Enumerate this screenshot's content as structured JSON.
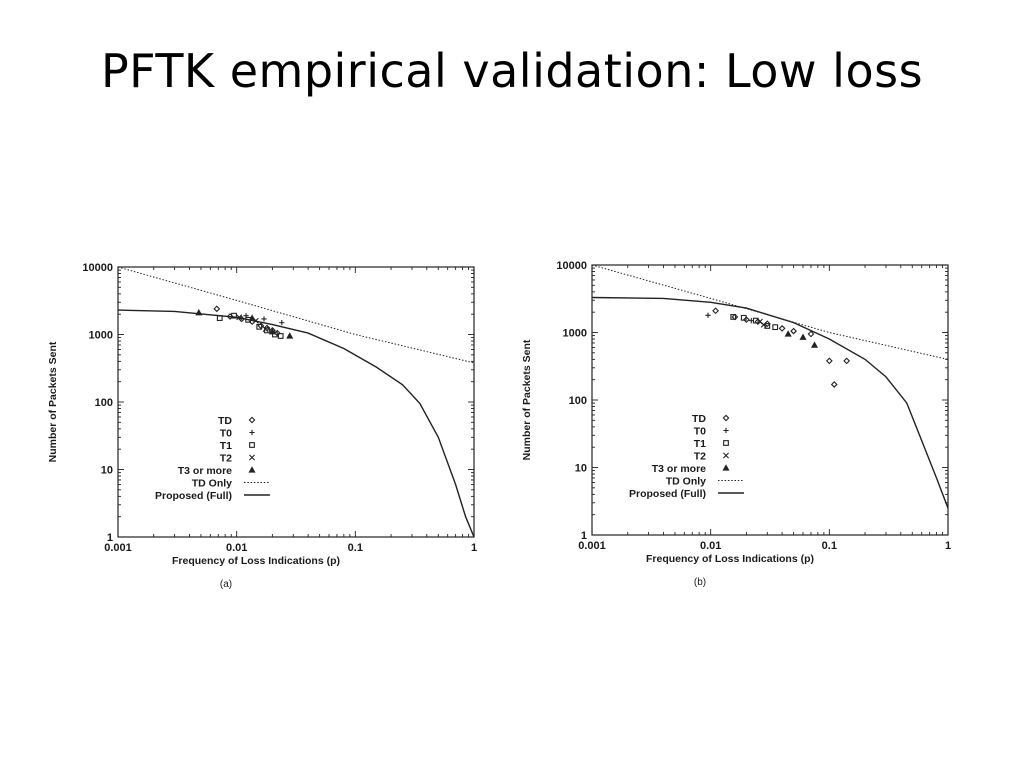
{
  "slide": {
    "title": "PFTK empirical validation: Low loss"
  },
  "chart_data": [
    {
      "type": "scatter",
      "caption": "(a)",
      "xlabel": "Frequency of Loss Indications (p)",
      "ylabel": "Number of Packets Sent",
      "x_scale": "log",
      "y_scale": "log",
      "xlim": [
        0.001,
        1
      ],
      "ylim": [
        1,
        10000
      ],
      "x_ticks": [
        {
          "value": 0.001,
          "label": "0.001"
        },
        {
          "value": 0.01,
          "label": "0.01"
        },
        {
          "value": 0.1,
          "label": "0.1"
        },
        {
          "value": 1,
          "label": "1"
        }
      ],
      "y_ticks": [
        {
          "value": 1,
          "label": "1"
        },
        {
          "value": 10,
          "label": "10"
        },
        {
          "value": 100,
          "label": "100"
        },
        {
          "value": 1000,
          "label": "1000"
        },
        {
          "value": 10000,
          "label": "10000"
        }
      ],
      "legend_position": "center-left",
      "series": [
        {
          "name": "TD",
          "kind": "points",
          "marker": "diamond",
          "points": [
            [
              0.0068,
              2400
            ],
            [
              0.0088,
              1850
            ],
            [
              0.011,
              1700
            ],
            [
              0.0135,
              1550
            ],
            [
              0.016,
              1350
            ],
            [
              0.018,
              1250
            ],
            [
              0.02,
              1150
            ],
            [
              0.022,
              1050
            ]
          ]
        },
        {
          "name": "T0",
          "kind": "points",
          "marker": "plus",
          "points": [
            [
              0.012,
              1900
            ],
            [
              0.017,
              1700
            ],
            [
              0.024,
              1500
            ]
          ]
        },
        {
          "name": "T1",
          "kind": "points",
          "marker": "square",
          "points": [
            [
              0.0072,
              1750
            ],
            [
              0.0095,
              1900
            ],
            [
              0.0125,
              1650
            ],
            [
              0.0155,
              1300
            ],
            [
              0.018,
              1150
            ],
            [
              0.021,
              1000
            ],
            [
              0.0235,
              950
            ]
          ]
        },
        {
          "name": "T2",
          "kind": "points",
          "marker": "cross",
          "points": [
            [
              0.0105,
              1800
            ],
            [
              0.0145,
              1600
            ],
            [
              0.0175,
              1200
            ]
          ]
        },
        {
          "name": "T3 or more",
          "kind": "points",
          "marker": "star",
          "points": [
            [
              0.0048,
              2100
            ],
            [
              0.0135,
              1750
            ],
            [
              0.02,
              1100
            ],
            [
              0.028,
              950
            ]
          ]
        },
        {
          "name": "TD Only",
          "kind": "line",
          "style": "dotted",
          "points": [
            [
              0.001,
              10000
            ],
            [
              0.01,
              3200
            ],
            [
              0.1,
              1000
            ],
            [
              1,
              380
            ]
          ]
        },
        {
          "name": "Proposed (Full)",
          "kind": "line",
          "style": "solid",
          "points": [
            [
              0.001,
              2300
            ],
            [
              0.003,
              2200
            ],
            [
              0.01,
              1800
            ],
            [
              0.02,
              1400
            ],
            [
              0.04,
              1050
            ],
            [
              0.08,
              620
            ],
            [
              0.15,
              330
            ],
            [
              0.25,
              180
            ],
            [
              0.35,
              95
            ],
            [
              0.5,
              30
            ],
            [
              0.7,
              6
            ],
            [
              0.85,
              2
            ],
            [
              1,
              1
            ]
          ]
        }
      ]
    },
    {
      "type": "scatter",
      "caption": "(b)",
      "xlabel": "Frequency of Loss Indications (p)",
      "ylabel": "Number of Packets Sent",
      "x_scale": "log",
      "y_scale": "log",
      "xlim": [
        0.001,
        1
      ],
      "ylim": [
        1,
        10000
      ],
      "x_ticks": [
        {
          "value": 0.001,
          "label": "0.001"
        },
        {
          "value": 0.01,
          "label": "0.01"
        },
        {
          "value": 0.1,
          "label": "0.1"
        },
        {
          "value": 1,
          "label": "1"
        }
      ],
      "y_ticks": [
        {
          "value": 1,
          "label": "1"
        },
        {
          "value": 10,
          "label": "10"
        },
        {
          "value": 100,
          "label": "100"
        },
        {
          "value": 1000,
          "label": "1000"
        },
        {
          "value": 10000,
          "label": "10000"
        }
      ],
      "legend_position": "center-left",
      "series": [
        {
          "name": "TD",
          "kind": "points",
          "marker": "diamond",
          "points": [
            [
              0.011,
              2100
            ],
            [
              0.016,
              1700
            ],
            [
              0.02,
              1550
            ],
            [
              0.025,
              1450
            ],
            [
              0.03,
              1350
            ],
            [
              0.04,
              1150
            ],
            [
              0.05,
              1050
            ],
            [
              0.07,
              950
            ],
            [
              0.1,
              380
            ],
            [
              0.11,
              170
            ],
            [
              0.14,
              380
            ]
          ]
        },
        {
          "name": "T0",
          "kind": "points",
          "marker": "plus",
          "points": [
            [
              0.0095,
              1800
            ],
            [
              0.022,
              1500
            ]
          ]
        },
        {
          "name": "T1",
          "kind": "points",
          "marker": "square",
          "points": [
            [
              0.0155,
              1700
            ],
            [
              0.019,
              1650
            ],
            [
              0.024,
              1500
            ],
            [
              0.03,
              1250
            ],
            [
              0.035,
              1200
            ]
          ]
        },
        {
          "name": "T2",
          "kind": "points",
          "marker": "cross",
          "points": [
            [
              0.026,
              1450
            ],
            [
              0.028,
              1300
            ]
          ]
        },
        {
          "name": "T3 or more",
          "kind": "points",
          "marker": "star",
          "points": [
            [
              0.045,
              950
            ],
            [
              0.06,
              850
            ],
            [
              0.075,
              650
            ]
          ]
        },
        {
          "name": "TD Only",
          "kind": "line",
          "style": "dotted",
          "points": [
            [
              0.001,
              10000
            ],
            [
              0.01,
              3200
            ],
            [
              0.1,
              1000
            ],
            [
              1,
              400
            ]
          ]
        },
        {
          "name": "Proposed (Full)",
          "kind": "line",
          "style": "solid",
          "points": [
            [
              0.001,
              3300
            ],
            [
              0.004,
              3200
            ],
            [
              0.01,
              2800
            ],
            [
              0.02,
              2300
            ],
            [
              0.05,
              1400
            ],
            [
              0.1,
              800
            ],
            [
              0.2,
              400
            ],
            [
              0.3,
              220
            ],
            [
              0.45,
              90
            ],
            [
              0.6,
              25
            ],
            [
              0.8,
              7
            ],
            [
              1,
              2.5
            ]
          ]
        }
      ]
    }
  ]
}
